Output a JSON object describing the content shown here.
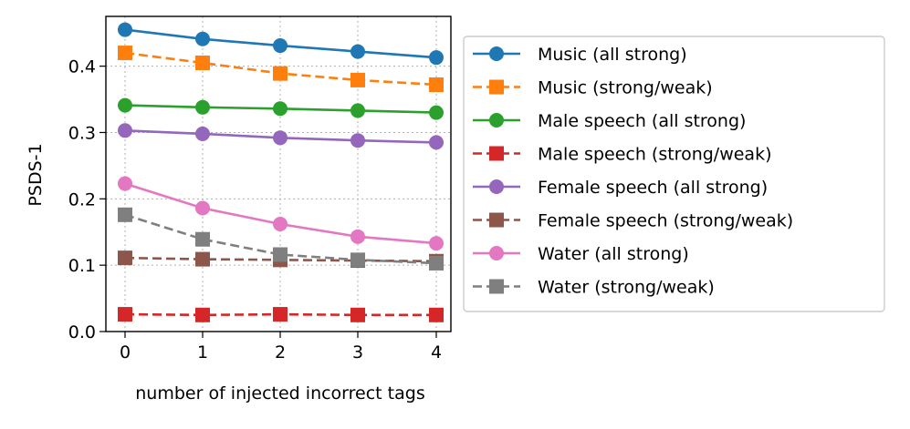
{
  "chart_data": {
    "type": "line",
    "title": "",
    "xlabel": "number of injected incorrect tags",
    "ylabel": "PSDS-1",
    "x": [
      0,
      1,
      2,
      3,
      4
    ],
    "xticks": [
      "0",
      "1",
      "2",
      "3",
      "4"
    ],
    "yticks": [
      "0.0",
      "0.1",
      "0.2",
      "0.3",
      "0.4"
    ],
    "ylim": [
      0,
      0.475
    ],
    "grid": true,
    "legend_position": "right, outside plot",
    "series": [
      {
        "name": "Music (all strong)",
        "color": "#1f77b4",
        "marker": "circle",
        "linestyle": "solid",
        "values": [
          0.455,
          0.441,
          0.431,
          0.422,
          0.413
        ]
      },
      {
        "name": "Music (strong/weak)",
        "color": "#ff7f0e",
        "marker": "square",
        "linestyle": "dashed",
        "values": [
          0.42,
          0.405,
          0.389,
          0.379,
          0.372
        ]
      },
      {
        "name": "Male speech (all strong)",
        "color": "#2ca02c",
        "marker": "circle",
        "linestyle": "solid",
        "values": [
          0.341,
          0.338,
          0.336,
          0.333,
          0.33
        ]
      },
      {
        "name": "Male speech (strong/weak)",
        "color": "#d62728",
        "marker": "square",
        "linestyle": "dashed",
        "values": [
          0.026,
          0.025,
          0.026,
          0.025,
          0.025
        ]
      },
      {
        "name": "Female speech (all strong)",
        "color": "#9467bd",
        "marker": "circle",
        "linestyle": "solid",
        "values": [
          0.303,
          0.298,
          0.292,
          0.288,
          0.285
        ]
      },
      {
        "name": "Female speech (strong/weak)",
        "color": "#8c564b",
        "marker": "square",
        "linestyle": "dashed",
        "values": [
          0.111,
          0.109,
          0.108,
          0.107,
          0.106
        ]
      },
      {
        "name": "Water (all strong)",
        "color": "#e377c2",
        "marker": "circle",
        "linestyle": "solid",
        "values": [
          0.223,
          0.186,
          0.162,
          0.143,
          0.133
        ]
      },
      {
        "name": "Water (strong/weak)",
        "color": "#7f7f7f",
        "marker": "square",
        "linestyle": "dashed",
        "values": [
          0.176,
          0.139,
          0.116,
          0.108,
          0.103
        ]
      }
    ]
  }
}
